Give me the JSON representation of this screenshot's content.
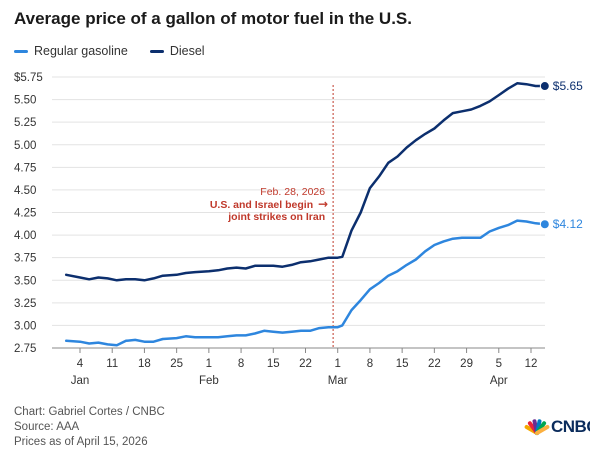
{
  "title": "Average price of a gallon of motor fuel in the U.S.",
  "legend": [
    {
      "label": "Regular gasoline",
      "color": "#2e86de"
    },
    {
      "label": "Diesel",
      "color": "#0c2f6e"
    }
  ],
  "chart_data": {
    "type": "line",
    "ylim": [
      2.75,
      5.75
    ],
    "yticks": [
      2.75,
      3.0,
      3.25,
      3.5,
      3.75,
      4.0,
      4.25,
      4.5,
      4.75,
      5.0,
      5.25,
      5.5,
      5.75
    ],
    "ytick_labels": [
      "2.75",
      "3.00",
      "3.25",
      "3.50",
      "3.75",
      "4.00",
      "4.25",
      "4.50",
      "4.75",
      "5.00",
      "5.25",
      "5.50",
      "$5.75"
    ],
    "x_range": [
      "2026-01-01",
      "2026-04-15"
    ],
    "x_ticks": [
      {
        "date": "2026-01-04",
        "label": "4"
      },
      {
        "date": "2026-01-11",
        "label": "11"
      },
      {
        "date": "2026-01-18",
        "label": "18"
      },
      {
        "date": "2026-01-25",
        "label": "25"
      },
      {
        "date": "2026-02-01",
        "label": "1"
      },
      {
        "date": "2026-02-08",
        "label": "8"
      },
      {
        "date": "2026-02-15",
        "label": "15"
      },
      {
        "date": "2026-02-22",
        "label": "22"
      },
      {
        "date": "2026-03-01",
        "label": "1"
      },
      {
        "date": "2026-03-08",
        "label": "8"
      },
      {
        "date": "2026-03-15",
        "label": "15"
      },
      {
        "date": "2026-03-22",
        "label": "22"
      },
      {
        "date": "2026-03-29",
        "label": "29"
      },
      {
        "date": "2026-04-05",
        "label": "5"
      },
      {
        "date": "2026-04-12",
        "label": "12"
      }
    ],
    "month_labels": [
      {
        "date": "2026-01-04",
        "label": "Jan"
      },
      {
        "date": "2026-02-01",
        "label": "Feb"
      },
      {
        "date": "2026-03-01",
        "label": "Mar"
      },
      {
        "date": "2026-04-05",
        "label": "Apr"
      }
    ],
    "grid": "horizontal",
    "series": [
      {
        "name": "Regular gasoline",
        "color": "#2e86de",
        "end_label": "$4.12",
        "points": [
          [
            "2026-01-01",
            2.83
          ],
          [
            "2026-01-04",
            2.82
          ],
          [
            "2026-01-06",
            2.8
          ],
          [
            "2026-01-08",
            2.81
          ],
          [
            "2026-01-10",
            2.79
          ],
          [
            "2026-01-12",
            2.78
          ],
          [
            "2026-01-14",
            2.83
          ],
          [
            "2026-01-16",
            2.84
          ],
          [
            "2026-01-18",
            2.82
          ],
          [
            "2026-01-20",
            2.82
          ],
          [
            "2026-01-22",
            2.85
          ],
          [
            "2026-01-25",
            2.86
          ],
          [
            "2026-01-27",
            2.88
          ],
          [
            "2026-01-29",
            2.87
          ],
          [
            "2026-02-01",
            2.87
          ],
          [
            "2026-02-03",
            2.87
          ],
          [
            "2026-02-05",
            2.88
          ],
          [
            "2026-02-07",
            2.89
          ],
          [
            "2026-02-09",
            2.89
          ],
          [
            "2026-02-11",
            2.91
          ],
          [
            "2026-02-13",
            2.94
          ],
          [
            "2026-02-15",
            2.93
          ],
          [
            "2026-02-17",
            2.92
          ],
          [
            "2026-02-19",
            2.93
          ],
          [
            "2026-02-21",
            2.94
          ],
          [
            "2026-02-23",
            2.94
          ],
          [
            "2026-02-25",
            2.97
          ],
          [
            "2026-02-27",
            2.98
          ],
          [
            "2026-03-01",
            2.98
          ],
          [
            "2026-03-02",
            3.0
          ],
          [
            "2026-03-04",
            3.17
          ],
          [
            "2026-03-06",
            3.28
          ],
          [
            "2026-03-08",
            3.4
          ],
          [
            "2026-03-10",
            3.47
          ],
          [
            "2026-03-12",
            3.55
          ],
          [
            "2026-03-14",
            3.6
          ],
          [
            "2026-03-16",
            3.67
          ],
          [
            "2026-03-18",
            3.73
          ],
          [
            "2026-03-20",
            3.82
          ],
          [
            "2026-03-22",
            3.89
          ],
          [
            "2026-03-24",
            3.93
          ],
          [
            "2026-03-26",
            3.96
          ],
          [
            "2026-03-28",
            3.97
          ],
          [
            "2026-03-30",
            3.97
          ],
          [
            "2026-04-01",
            3.97
          ],
          [
            "2026-04-03",
            4.04
          ],
          [
            "2026-04-05",
            4.08
          ],
          [
            "2026-04-07",
            4.11
          ],
          [
            "2026-04-09",
            4.16
          ],
          [
            "2026-04-11",
            4.15
          ],
          [
            "2026-04-13",
            4.13
          ],
          [
            "2026-04-15",
            4.12
          ]
        ]
      },
      {
        "name": "Diesel",
        "color": "#0c2f6e",
        "end_label": "$5.65",
        "points": [
          [
            "2026-01-01",
            3.56
          ],
          [
            "2026-01-04",
            3.53
          ],
          [
            "2026-01-06",
            3.51
          ],
          [
            "2026-01-08",
            3.53
          ],
          [
            "2026-01-10",
            3.52
          ],
          [
            "2026-01-12",
            3.5
          ],
          [
            "2026-01-14",
            3.51
          ],
          [
            "2026-01-16",
            3.51
          ],
          [
            "2026-01-18",
            3.5
          ],
          [
            "2026-01-20",
            3.52
          ],
          [
            "2026-01-22",
            3.55
          ],
          [
            "2026-01-25",
            3.56
          ],
          [
            "2026-01-27",
            3.58
          ],
          [
            "2026-01-29",
            3.59
          ],
          [
            "2026-02-01",
            3.6
          ],
          [
            "2026-02-03",
            3.61
          ],
          [
            "2026-02-05",
            3.63
          ],
          [
            "2026-02-07",
            3.64
          ],
          [
            "2026-02-09",
            3.63
          ],
          [
            "2026-02-11",
            3.66
          ],
          [
            "2026-02-13",
            3.66
          ],
          [
            "2026-02-15",
            3.66
          ],
          [
            "2026-02-17",
            3.65
          ],
          [
            "2026-02-19",
            3.67
          ],
          [
            "2026-02-21",
            3.7
          ],
          [
            "2026-02-23",
            3.71
          ],
          [
            "2026-02-25",
            3.73
          ],
          [
            "2026-02-27",
            3.75
          ],
          [
            "2026-03-01",
            3.75
          ],
          [
            "2026-03-02",
            3.76
          ],
          [
            "2026-03-04",
            4.05
          ],
          [
            "2026-03-06",
            4.25
          ],
          [
            "2026-03-08",
            4.52
          ],
          [
            "2026-03-10",
            4.65
          ],
          [
            "2026-03-12",
            4.8
          ],
          [
            "2026-03-14",
            4.87
          ],
          [
            "2026-03-16",
            4.97
          ],
          [
            "2026-03-18",
            5.05
          ],
          [
            "2026-03-20",
            5.12
          ],
          [
            "2026-03-22",
            5.18
          ],
          [
            "2026-03-24",
            5.27
          ],
          [
            "2026-03-26",
            5.35
          ],
          [
            "2026-03-28",
            5.37
          ],
          [
            "2026-03-30",
            5.39
          ],
          [
            "2026-04-01",
            5.43
          ],
          [
            "2026-04-03",
            5.48
          ],
          [
            "2026-04-05",
            5.55
          ],
          [
            "2026-04-07",
            5.62
          ],
          [
            "2026-04-09",
            5.68
          ],
          [
            "2026-04-11",
            5.67
          ],
          [
            "2026-04-13",
            5.65
          ],
          [
            "2026-04-15",
            5.65
          ]
        ]
      }
    ],
    "annotation": {
      "date": "2026-02-28",
      "date_label": "Feb. 28, 2026",
      "text_lines": [
        "U.S. and Israel begin",
        "joint strikes on Iran"
      ],
      "arrow": "→",
      "color": "#c0392b"
    }
  },
  "footer": {
    "credit": "Chart: Gabriel Cortes / CNBC",
    "source": "Source: AAA",
    "note": "Prices as of April 15, 2026"
  },
  "logo": {
    "text": "CNBC",
    "icon": "peacock-icon"
  }
}
